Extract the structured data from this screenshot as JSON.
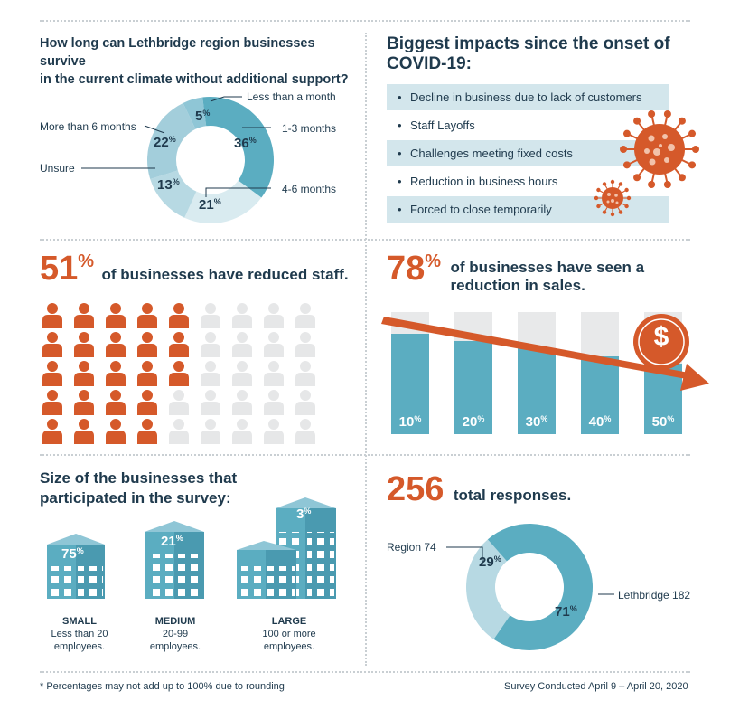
{
  "survival": {
    "title_line1": "How long can Lethbridge region businesses survive",
    "title_line2": "in the current climate without additional support?",
    "segments": [
      {
        "label": "Less than a month",
        "value": 5,
        "color": "#8fc6d6"
      },
      {
        "label": "1-3 months",
        "value": 36,
        "color": "#5badc1"
      },
      {
        "label": "4-6 months",
        "value": 21,
        "color": "#d9ebf0"
      },
      {
        "label": "Unsure",
        "value": 13,
        "color": "#b7d9e3"
      },
      {
        "label": "More than 6 months",
        "value": 22,
        "color": "#a3cedb"
      }
    ],
    "pct_5": "5",
    "pct_36": "36",
    "pct_21": "21",
    "pct_13": "13",
    "pct_22": "22",
    "pct_sign": "%"
  },
  "impacts": {
    "title_line1": "Biggest impacts since the onset of",
    "title_line2": "COVID-19:",
    "items": [
      "Decline in business due to lack of customers",
      "Staff Layoffs",
      "Challenges meeting fixed costs",
      "Reduction in business hours",
      "Forced to close temporarily"
    ],
    "bullet": "•"
  },
  "staff": {
    "number": "51",
    "pct_sign": "%",
    "text": "of businesses have reduced staff.",
    "reduced_fraction": 0.51,
    "total_people": 45,
    "colors": {
      "reduced": "#d5592a",
      "not_reduced": "#e6e7e8"
    }
  },
  "sales": {
    "number": "78",
    "pct_sign": "%",
    "text_line1": "of businesses have seen a",
    "text_line2": "reduction in sales.",
    "dollar": "$",
    "bars": [
      {
        "label": "10",
        "reduction": 10
      },
      {
        "label": "20",
        "reduction": 20
      },
      {
        "label": "30",
        "reduction": 30
      },
      {
        "label": "40",
        "reduction": 40
      },
      {
        "label": "50",
        "reduction": 50
      }
    ],
    "pct_sign_small": "%"
  },
  "size": {
    "title_line1": "Size of the businesses that",
    "title_line2": "participated in the survey:",
    "small": {
      "pct": "75",
      "name": "SMALL",
      "desc1": "Less than 20",
      "desc2": "employees."
    },
    "medium": {
      "pct": "21",
      "name": "MEDIUM",
      "desc1": "20-99",
      "desc2": "employees."
    },
    "large": {
      "pct": "3",
      "name": "LARGE",
      "desc1": "100 or more",
      "desc2": "employees."
    },
    "pct_sign": "%"
  },
  "responses": {
    "total": "256",
    "text": "total responses.",
    "region_label": "Region 74",
    "lethbridge_label": "Lethbridge 182",
    "region_pct": "29",
    "lethbridge_pct": "71",
    "region_value": 29,
    "lethbridge_value": 71,
    "pct_sign": "%"
  },
  "footer": {
    "note": "* Percentages may not add up to 100% due to rounding",
    "dates": "Survey Conducted April 9 – April 20, 2020"
  },
  "colors": {
    "navy": "#1f3a4d",
    "orange": "#d5592a",
    "teal": "#5badc1",
    "light_teal": "#b7d9e3",
    "grey": "#e6e7e8"
  }
}
